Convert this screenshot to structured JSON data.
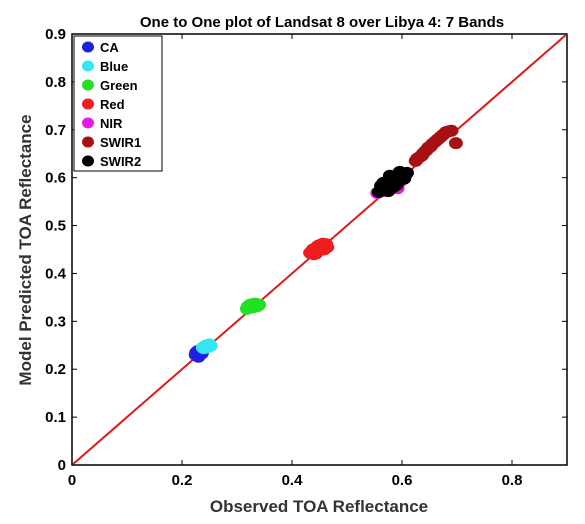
{
  "chart_data": {
    "type": "scatter",
    "title": "One to One plot of Landsat 8 over Libya 4: 7 Bands",
    "xlabel": "Observed TOA Reflectance",
    "ylabel": "Model Predicted TOA Reflectance",
    "xlim": [
      0,
      0.9
    ],
    "ylim": [
      0,
      0.9
    ],
    "xticks": [
      0,
      0.2,
      0.4,
      0.6,
      0.8
    ],
    "xtick_labels": [
      "0",
      "0.2",
      "0.4",
      "0.6",
      "0.8"
    ],
    "yticks": [
      0,
      0.1,
      0.2,
      0.3,
      0.4,
      0.5,
      0.6,
      0.7,
      0.8,
      0.9
    ],
    "ytick_labels": [
      "0",
      "0.1",
      "0.2",
      "0.3",
      "0.4",
      "0.5",
      "0.6",
      "0.7",
      "0.8",
      "0.9"
    ],
    "grid": false,
    "legend_position": "top-left",
    "one_to_one_line": {
      "x": [
        0,
        0.9
      ],
      "y": [
        0,
        0.9
      ],
      "color": "#e01a1a"
    },
    "series": [
      {
        "name": "CA",
        "color": "#1f1fe6",
        "points": [
          [
            0.225,
            0.23
          ],
          [
            0.228,
            0.234
          ],
          [
            0.231,
            0.232
          ],
          [
            0.233,
            0.236
          ],
          [
            0.227,
            0.228
          ],
          [
            0.235,
            0.238
          ],
          [
            0.23,
            0.226
          ],
          [
            0.229,
            0.238
          ],
          [
            0.236,
            0.233
          ],
          [
            0.226,
            0.235
          ]
        ]
      },
      {
        "name": "Blue",
        "color": "#33e6f0",
        "points": [
          [
            0.238,
            0.245
          ],
          [
            0.242,
            0.248
          ],
          [
            0.245,
            0.25
          ],
          [
            0.248,
            0.247
          ],
          [
            0.25,
            0.252
          ],
          [
            0.24,
            0.244
          ],
          [
            0.252,
            0.249
          ],
          [
            0.246,
            0.246
          ]
        ]
      },
      {
        "name": "Green",
        "color": "#22e022",
        "points": [
          [
            0.318,
            0.326
          ],
          [
            0.322,
            0.33
          ],
          [
            0.326,
            0.333
          ],
          [
            0.33,
            0.334
          ],
          [
            0.334,
            0.331
          ],
          [
            0.328,
            0.329
          ],
          [
            0.336,
            0.336
          ],
          [
            0.338,
            0.332
          ],
          [
            0.324,
            0.335
          ],
          [
            0.332,
            0.337
          ],
          [
            0.32,
            0.331
          ],
          [
            0.34,
            0.335
          ]
        ]
      },
      {
        "name": "Red",
        "color": "#ee1c1c",
        "points": [
          [
            0.433,
            0.443
          ],
          [
            0.436,
            0.446
          ],
          [
            0.44,
            0.44
          ],
          [
            0.442,
            0.448
          ],
          [
            0.445,
            0.455
          ],
          [
            0.448,
            0.458
          ],
          [
            0.452,
            0.46
          ],
          [
            0.456,
            0.462
          ],
          [
            0.46,
            0.458
          ],
          [
            0.464,
            0.455
          ],
          [
            0.438,
            0.45
          ],
          [
            0.444,
            0.442
          ],
          [
            0.45,
            0.452
          ],
          [
            0.458,
            0.45
          ],
          [
            0.462,
            0.461
          ]
        ]
      },
      {
        "name": "NIR",
        "color": "#e61ce6",
        "points": [
          [
            0.555,
            0.568
          ],
          [
            0.565,
            0.572
          ],
          [
            0.575,
            0.582
          ],
          [
            0.585,
            0.585
          ],
          [
            0.595,
            0.59
          ],
          [
            0.6,
            0.596
          ],
          [
            0.592,
            0.578
          ],
          [
            0.57,
            0.576
          ]
        ]
      },
      {
        "name": "SWIR1",
        "color": "#a81111",
        "points": [
          [
            0.625,
            0.635
          ],
          [
            0.632,
            0.643
          ],
          [
            0.638,
            0.65
          ],
          [
            0.642,
            0.655
          ],
          [
            0.648,
            0.663
          ],
          [
            0.655,
            0.67
          ],
          [
            0.66,
            0.675
          ],
          [
            0.665,
            0.68
          ],
          [
            0.67,
            0.685
          ],
          [
            0.675,
            0.69
          ],
          [
            0.68,
            0.695
          ],
          [
            0.685,
            0.697
          ],
          [
            0.69,
            0.698
          ],
          [
            0.645,
            0.658
          ],
          [
            0.652,
            0.665
          ],
          [
            0.698,
            0.672
          ],
          [
            0.628,
            0.64
          ],
          [
            0.636,
            0.646
          ]
        ]
      },
      {
        "name": "SWIR2",
        "color": "#000000",
        "points": [
          [
            0.558,
            0.57
          ],
          [
            0.563,
            0.576
          ],
          [
            0.567,
            0.582
          ],
          [
            0.57,
            0.59
          ],
          [
            0.573,
            0.585
          ],
          [
            0.576,
            0.592
          ],
          [
            0.579,
            0.598
          ],
          [
            0.582,
            0.601
          ],
          [
            0.585,
            0.595
          ],
          [
            0.588,
            0.6
          ],
          [
            0.591,
            0.604
          ],
          [
            0.594,
            0.607
          ],
          [
            0.597,
            0.603
          ],
          [
            0.6,
            0.606
          ],
          [
            0.603,
            0.609
          ],
          [
            0.606,
            0.605
          ],
          [
            0.609,
            0.61
          ],
          [
            0.572,
            0.578
          ],
          [
            0.58,
            0.586
          ],
          [
            0.586,
            0.589
          ],
          [
            0.592,
            0.596
          ],
          [
            0.598,
            0.599
          ],
          [
            0.575,
            0.572
          ],
          [
            0.583,
            0.58
          ],
          [
            0.59,
            0.585
          ],
          [
            0.566,
            0.589
          ],
          [
            0.578,
            0.604
          ],
          [
            0.596,
            0.612
          ],
          [
            0.604,
            0.598
          ],
          [
            0.562,
            0.583
          ]
        ]
      }
    ]
  }
}
